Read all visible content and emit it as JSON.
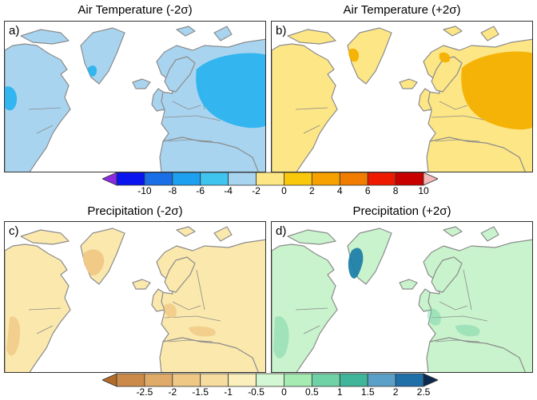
{
  "panels": [
    {
      "label": "a)",
      "title_base": "Air Temperature",
      "title_sigma": "-2",
      "fill": "#a8d4ef",
      "blob": "#2cb3ee"
    },
    {
      "label": "b)",
      "title_base": "Air Temperature",
      "title_sigma": "+2",
      "fill": "#fde685",
      "blob": "#f6b000"
    },
    {
      "label": "c)",
      "title_base": "Precipitation",
      "title_sigma": "-2",
      "fill": "#fbe8ac",
      "blob": "#f0c886"
    },
    {
      "label": "d)",
      "title_base": "Precipitation",
      "title_sigma": "+2",
      "fill": "#c8f3cc",
      "blob": "#1f7fa8"
    }
  ],
  "titles": {
    "a": "Air Temperature (-2σ)",
    "b": "Air Temperature (+2σ)",
    "c": "Precipitation (-2σ)",
    "d": "Precipitation (+2σ)"
  },
  "temp_colorbar": {
    "colors": [
      "#8a2be2",
      "#0a14ee",
      "#1a6ee6",
      "#1ea0f0",
      "#3fc4f0",
      "#a8d4ef",
      "#fde685",
      "#f9c80d",
      "#f6a100",
      "#f07d00",
      "#ee1a00",
      "#c80000",
      "#f4b8b8"
    ],
    "ticks": [
      "-10",
      "-8",
      "-6",
      "-4",
      "-2",
      "0",
      "2",
      "4",
      "6",
      "8",
      "10"
    ]
  },
  "precip_colorbar": {
    "colors": [
      "#b36b2a",
      "#cc8a4a",
      "#e0aa68",
      "#f0c886",
      "#f7dc9f",
      "#fbefbb",
      "#d2f7d2",
      "#a6ebb2",
      "#6fd1a6",
      "#3fb59a",
      "#5aa0c8",
      "#1f6fa8",
      "#0b2a4e"
    ],
    "ticks": [
      "-2.5",
      "-2",
      "-1.5",
      "-1",
      "-0.5",
      "0",
      "0.5",
      "1",
      "1.5",
      "2",
      "2.5"
    ]
  }
}
